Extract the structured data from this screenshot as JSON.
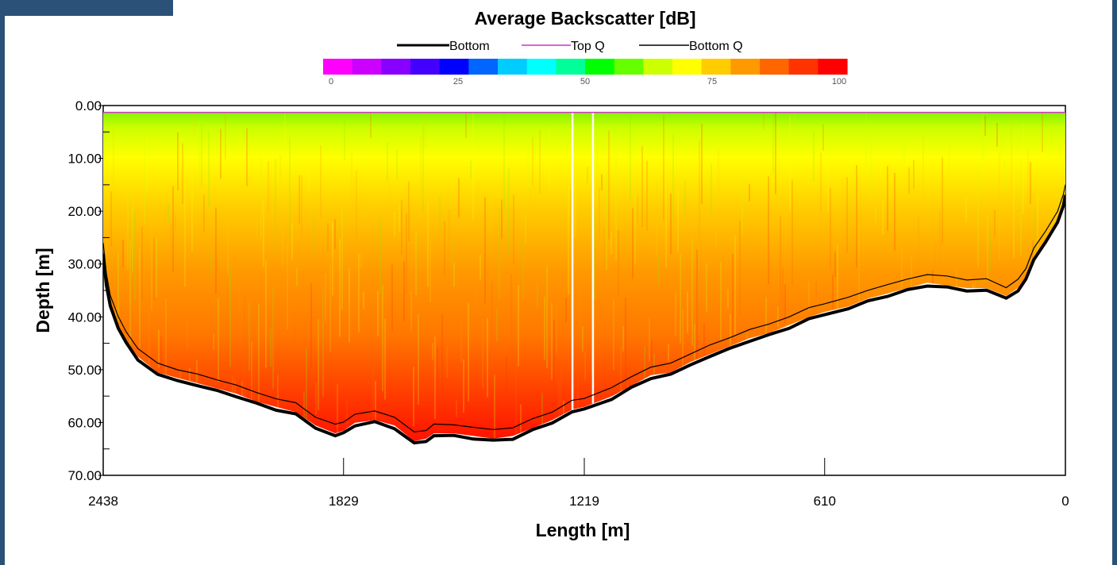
{
  "chart_data": {
    "type": "heatmap",
    "title": "Average Backscatter [dB]",
    "xlabel": "Length [m]",
    "ylabel": "Depth [m]",
    "xlim": [
      2438,
      0
    ],
    "ylim": [
      0,
      70
    ],
    "x_ticks": [
      "2438",
      "1829",
      "1219",
      "610",
      "0"
    ],
    "y_ticks": [
      "0.00",
      "10.00",
      "20.00",
      "30.00",
      "40.00",
      "50.00",
      "60.00",
      "70.00"
    ],
    "legend": [
      "Bottom",
      "Top Q",
      "Bottom Q"
    ],
    "legend_colors": [
      "#000000",
      "#cc33cc",
      "#000000"
    ],
    "colorbar": {
      "ticks": [
        "0",
        "25",
        "50",
        "75",
        "100"
      ],
      "range": [
        0,
        100
      ],
      "colors": [
        "#ff00ff",
        "#cc00ff",
        "#8800ff",
        "#4400ff",
        "#0000ff",
        "#0066ff",
        "#00ccff",
        "#00ffff",
        "#00ff99",
        "#00ff00",
        "#66ff00",
        "#ccff00",
        "#ffff00",
        "#ffcc00",
        "#ff9900",
        "#ff6600",
        "#ff3300",
        "#ff0000"
      ]
    },
    "top_q_depth": 1.3,
    "bottom_profile": {
      "length": [
        2438,
        2430,
        2420,
        2400,
        2380,
        2350,
        2300,
        2250,
        2200,
        2150,
        2100,
        2050,
        2000,
        1950,
        1900,
        1850,
        1829,
        1800,
        1750,
        1700,
        1650,
        1620,
        1600,
        1550,
        1500,
        1450,
        1400,
        1350,
        1300,
        1250,
        1219,
        1150,
        1100,
        1050,
        1000,
        950,
        900,
        850,
        800,
        750,
        700,
        650,
        610,
        550,
        500,
        450,
        400,
        350,
        300,
        250,
        200,
        150,
        120,
        100,
        80,
        50,
        20,
        5,
        0
      ],
      "depth": [
        28,
        34,
        38,
        42,
        45,
        48,
        51,
        52,
        53,
        54,
        55,
        56.5,
        57.5,
        58.5,
        61,
        62.5,
        62,
        60.5,
        60,
        61,
        64,
        63.5,
        62.5,
        62.5,
        63,
        63.5,
        63,
        61.5,
        60,
        58,
        57.5,
        55.5,
        53.5,
        51.5,
        51,
        49,
        47.5,
        46,
        44.5,
        43.5,
        42,
        40.5,
        39.5,
        38.5,
        37,
        36,
        35,
        34,
        34.5,
        35,
        35,
        36.5,
        35,
        33,
        29,
        26,
        22,
        19,
        17
      ]
    },
    "data_gap_length": [
      1249,
      1197
    ]
  }
}
